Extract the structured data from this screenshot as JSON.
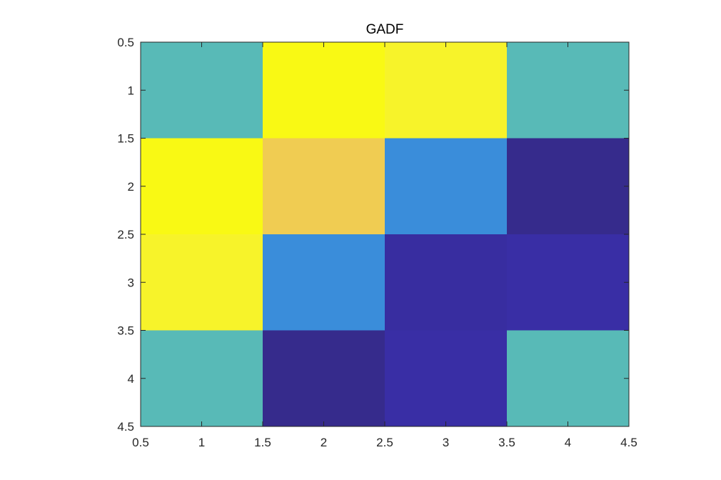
{
  "chart_data": {
    "type": "heatmap",
    "title": "GADF",
    "xlabel": "",
    "ylabel": "",
    "x_categories": [
      1,
      2,
      3,
      4
    ],
    "y_categories": [
      1,
      2,
      3,
      4
    ],
    "xlim": [
      0.5,
      4.5
    ],
    "ylim": [
      0.5,
      4.5
    ],
    "y_direction": "reversed",
    "x_ticks": [
      "0.5",
      "1",
      "1.5",
      "2",
      "2.5",
      "3",
      "3.5",
      "4",
      "4.5"
    ],
    "y_ticks": [
      "0.5",
      "1",
      "1.5",
      "2",
      "2.5",
      "3",
      "3.5",
      "4",
      "4.5"
    ],
    "colormap": "parula",
    "clim": [
      -1,
      1
    ],
    "matrix": [
      [
        0.0,
        0.98,
        0.9,
        0.0
      ],
      [
        0.98,
        0.6,
        -0.35,
        -0.98
      ],
      [
        0.9,
        -0.35,
        -0.9,
        -0.88
      ],
      [
        0.0,
        -0.98,
        -0.88,
        0.0
      ]
    ],
    "grid": false,
    "legend": "none"
  }
}
